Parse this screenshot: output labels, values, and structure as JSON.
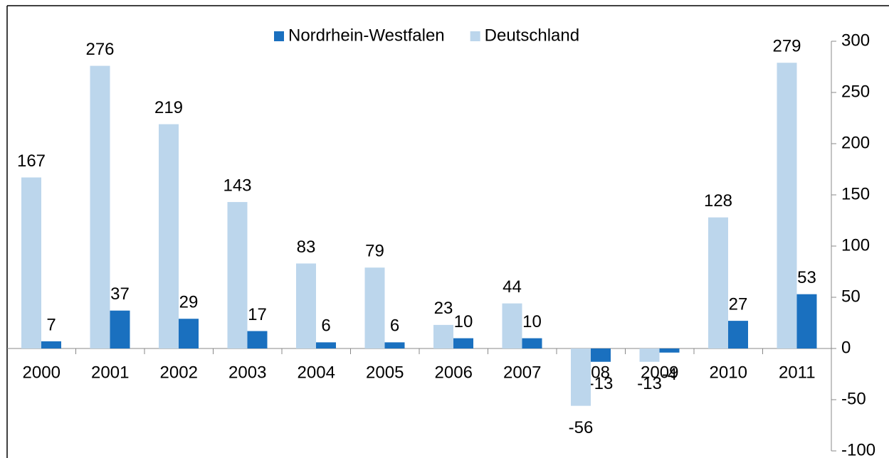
{
  "chart_data": {
    "type": "bar",
    "categories": [
      "2000",
      "2001",
      "2002",
      "2003",
      "2004",
      "2005",
      "2006",
      "2007",
      "2008",
      "2009",
      "2010",
      "2011"
    ],
    "series": [
      {
        "name": "Nordrhein-Westfalen",
        "color": "#1a70bf",
        "values": [
          7,
          37,
          29,
          17,
          6,
          6,
          10,
          10,
          -13,
          -4,
          27,
          53
        ]
      },
      {
        "name": "Deutschland",
        "color": "#bcd6ec",
        "values": [
          167,
          276,
          219,
          143,
          83,
          79,
          23,
          44,
          -56,
          -13,
          128,
          279
        ]
      }
    ],
    "ylim": [
      -100,
      300
    ],
    "yticks": [
      -100,
      -50,
      0,
      50,
      100,
      150,
      200,
      250,
      300
    ],
    "legend": "top"
  }
}
